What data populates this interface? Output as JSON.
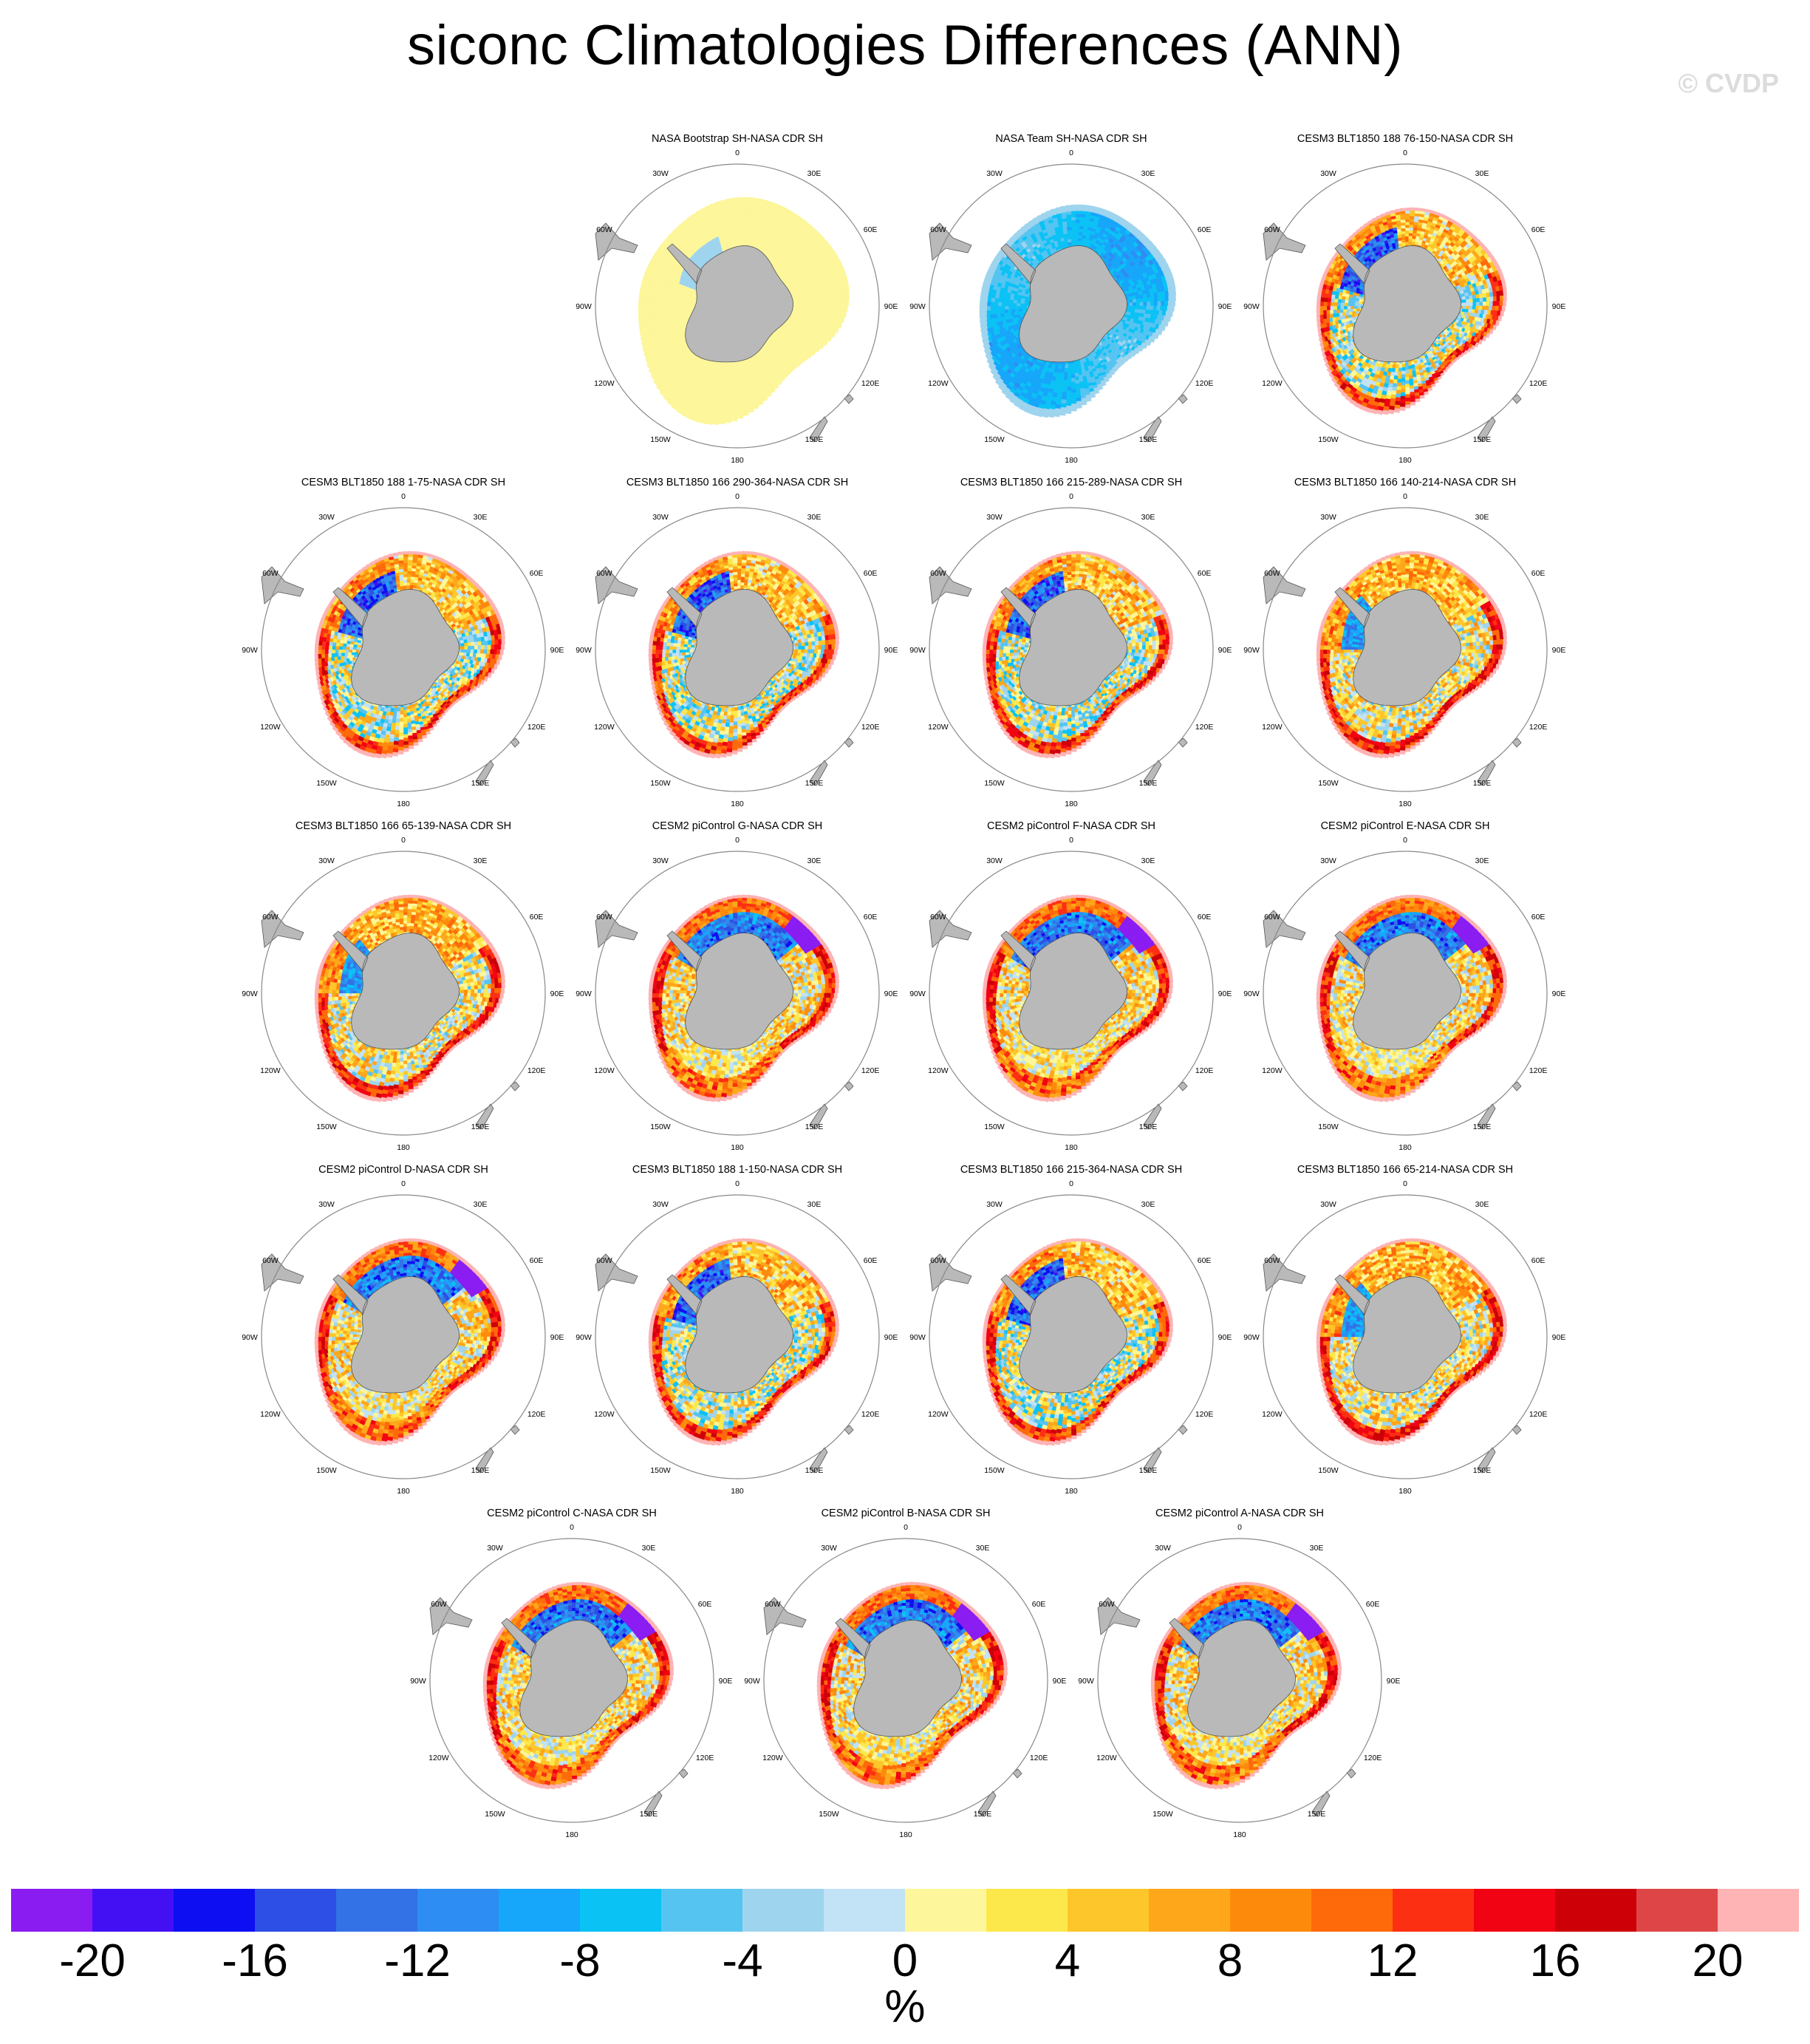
{
  "title": "siconc Climatologies Differences (ANN)",
  "watermark": "© CVDP",
  "colors": {
    "land": "#b9b9b9",
    "land_edge": "#555555",
    "ring": "#888888",
    "colorbar": [
      "#8a1cf2",
      "#4310f4",
      "#0d0ff2",
      "#2d4fe5",
      "#3272e6",
      "#2d8df2",
      "#16a6fa",
      "#0bc2f5",
      "#55c4f1",
      "#9ed4ee",
      "#c2e2f5",
      "#fdf69a",
      "#fde84b",
      "#fdc62a",
      "#fea71a",
      "#fe8a0c",
      "#fe6a0a",
      "#fd2f12",
      "#f10313",
      "#cd0008",
      "#dd4546",
      "#feb3b4"
    ]
  },
  "map_labels": {
    "lon": [
      "0",
      "30E",
      "60E",
      "90E",
      "120E",
      "150E",
      "180",
      "150W",
      "120W",
      "90W",
      "60W",
      "30W"
    ]
  },
  "chart_data": {
    "type": "polar-map-panels",
    "variable": "siconc",
    "season": "ANN",
    "projection": "south-polar-stereographic",
    "panels": [
      {
        "title": "NASA Bootstrap SH-NASA CDR SH",
        "pattern": "bootstrap"
      },
      {
        "title": "NASA Team SH-NASA CDR SH",
        "pattern": "team"
      },
      {
        "title": "CESM3 BLT1850 188 76-150-NASA CDR SH",
        "pattern": "cesm3"
      },
      {
        "title": "CESM3 BLT1850 188 1-75-NASA CDR SH",
        "pattern": "cesm3"
      },
      {
        "title": "CESM3 BLT1850 166 290-364-NASA CDR SH",
        "pattern": "cesm3"
      },
      {
        "title": "CESM3 BLT1850 166 215-289-NASA CDR SH",
        "pattern": "cesm3"
      },
      {
        "title": "CESM3 BLT1850 166 140-214-NASA CDR SH",
        "pattern": "cesm3warm"
      },
      {
        "title": "CESM3 BLT1850 166 65-139-NASA CDR SH",
        "pattern": "cesm3warm"
      },
      {
        "title": "CESM2 piControl G-NASA CDR SH",
        "pattern": "cesm2"
      },
      {
        "title": "CESM2 piControl F-NASA CDR SH",
        "pattern": "cesm2"
      },
      {
        "title": "CESM2 piControl E-NASA CDR SH",
        "pattern": "cesm2"
      },
      {
        "title": "CESM2 piControl D-NASA CDR SH",
        "pattern": "cesm2"
      },
      {
        "title": "CESM3 BLT1850 188 1-150-NASA CDR SH",
        "pattern": "cesm3"
      },
      {
        "title": "CESM3 BLT1850 166 215-364-NASA CDR SH",
        "pattern": "cesm3"
      },
      {
        "title": "CESM3 BLT1850 166 65-214-NASA CDR SH",
        "pattern": "cesm3warm"
      },
      {
        "title": "CESM2 piControl C-NASA CDR SH",
        "pattern": "cesm2"
      },
      {
        "title": "CESM2 piControl B-NASA CDR SH",
        "pattern": "cesm2"
      },
      {
        "title": "CESM2 piControl A-NASA CDR SH",
        "pattern": "cesm2"
      }
    ],
    "colorbar": {
      "levels": [
        -20,
        -18,
        -16,
        -14,
        -12,
        -10,
        -8,
        -6,
        -4,
        -2,
        0,
        2,
        4,
        6,
        8,
        10,
        12,
        14,
        16,
        18,
        20
      ],
      "tick_labels": [
        "-20",
        "-16",
        "-12",
        "-8",
        "-4",
        "0",
        "4",
        "8",
        "12",
        "16",
        "20"
      ],
      "tick_values": [
        -20,
        -16,
        -12,
        -8,
        -4,
        0,
        4,
        8,
        12,
        16,
        20
      ],
      "units": "%"
    }
  }
}
